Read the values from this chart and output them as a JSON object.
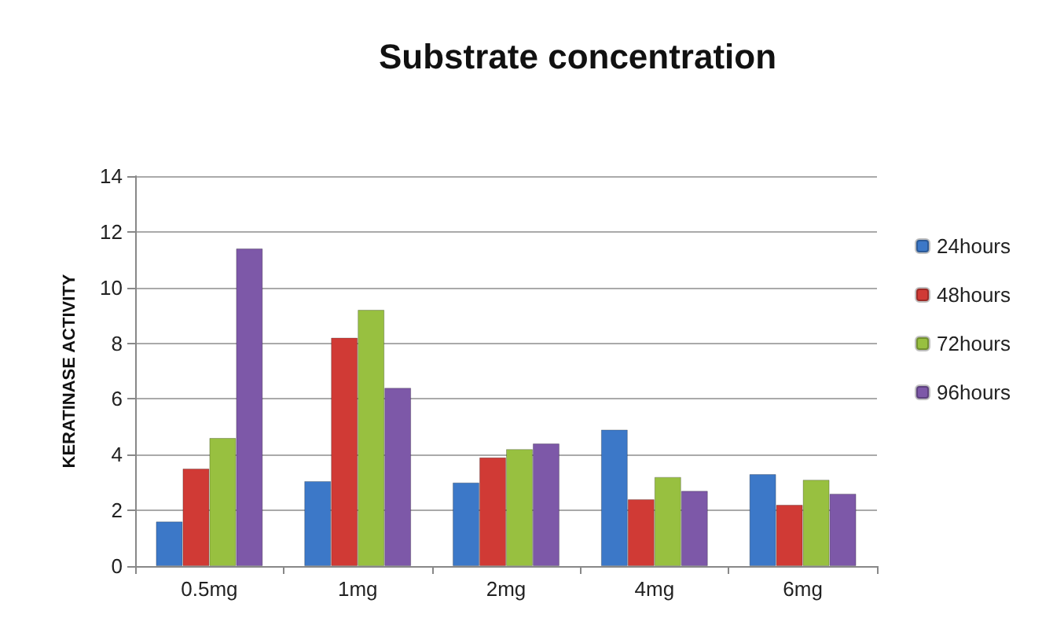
{
  "chart_data": {
    "type": "bar",
    "title": "Substrate concentration",
    "ylabel": "KERATINASE ACTIVITY",
    "categories": [
      "0.5mg",
      "1mg",
      "2mg",
      "4mg",
      "6mg"
    ],
    "series": [
      {
        "name": "24hours",
        "color": "#3c78c8",
        "values": [
          1.6,
          3.05,
          3.0,
          4.9,
          3.3
        ]
      },
      {
        "name": "48hours",
        "color": "#d03a35",
        "values": [
          3.5,
          8.2,
          3.9,
          2.4,
          2.2
        ]
      },
      {
        "name": "72hours",
        "color": "#98c040",
        "values": [
          4.6,
          9.2,
          4.2,
          3.2,
          3.1
        ]
      },
      {
        "name": "96hours",
        "color": "#7d58a8",
        "values": [
          11.4,
          6.4,
          4.4,
          2.7,
          2.6
        ]
      }
    ],
    "ylim": [
      0,
      14
    ],
    "yticks": [
      0,
      2,
      4,
      6,
      8,
      10,
      12,
      14
    ],
    "grid": "y",
    "legend": "right"
  }
}
